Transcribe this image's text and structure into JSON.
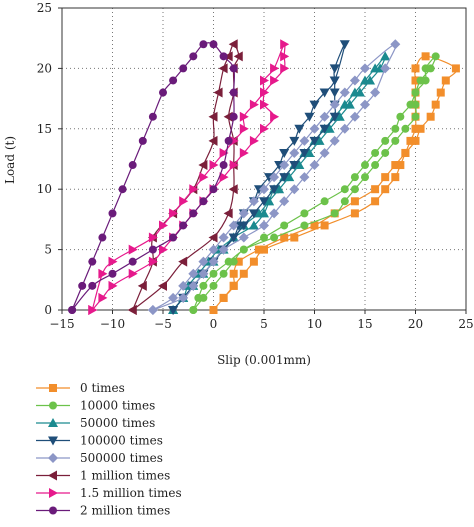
{
  "chart_data": {
    "type": "line",
    "xlabel": "Slip (0.001mm)",
    "ylabel": "Load (t)",
    "xlim": [
      -15,
      25
    ],
    "ylim": [
      0,
      25
    ],
    "xticks": [
      "−15",
      "−10",
      "−5",
      "0",
      "5",
      "10",
      "15",
      "20",
      "25"
    ],
    "yticks": [
      "0",
      "5",
      "10",
      "15",
      "20",
      "25"
    ],
    "grid": "dotted",
    "legend_position": "bottom-left, below plot",
    "series": [
      {
        "name": "0 times",
        "color": "#f28e2b",
        "marker": "square",
        "points": [
          [
            0,
            0
          ],
          [
            1,
            1
          ],
          [
            2,
            2
          ],
          [
            3,
            3
          ],
          [
            4,
            4
          ],
          [
            5,
            5
          ],
          [
            8,
            6
          ],
          [
            11,
            7
          ],
          [
            14,
            8
          ],
          [
            16,
            9
          ],
          [
            17,
            10
          ],
          [
            18,
            11
          ],
          [
            18.5,
            12
          ],
          [
            19,
            13
          ],
          [
            19.5,
            14
          ],
          [
            20,
            15
          ],
          [
            20,
            16
          ],
          [
            20,
            17
          ],
          [
            20,
            18
          ],
          [
            20,
            19
          ],
          [
            20,
            20
          ],
          [
            21,
            21
          ],
          [
            24,
            20
          ],
          [
            23,
            19
          ],
          [
            22.5,
            18
          ],
          [
            22,
            17
          ],
          [
            21.5,
            16
          ],
          [
            20.5,
            15
          ],
          [
            20,
            14
          ],
          [
            19,
            13
          ],
          [
            18,
            12
          ],
          [
            17,
            11
          ],
          [
            16,
            10
          ],
          [
            14,
            9
          ],
          [
            12,
            8
          ],
          [
            10,
            7
          ],
          [
            7,
            6
          ],
          [
            4.5,
            5
          ],
          [
            2.5,
            4
          ],
          [
            2,
            3
          ],
          [
            2,
            2
          ],
          [
            1,
            1
          ],
          [
            0,
            0
          ]
        ]
      },
      {
        "name": "10000 times",
        "color": "#6cc24a",
        "marker": "circle",
        "points": [
          [
            -2,
            0
          ],
          [
            -1,
            1
          ],
          [
            0,
            2
          ],
          [
            1,
            3
          ],
          [
            2,
            4
          ],
          [
            3,
            5
          ],
          [
            6,
            6
          ],
          [
            9,
            7
          ],
          [
            12,
            8
          ],
          [
            13,
            9
          ],
          [
            14,
            10
          ],
          [
            15,
            11
          ],
          [
            16,
            12
          ],
          [
            17,
            13
          ],
          [
            18,
            14
          ],
          [
            19,
            15
          ],
          [
            20,
            16
          ],
          [
            20,
            17
          ],
          [
            20,
            18
          ],
          [
            21,
            19
          ],
          [
            21,
            20
          ],
          [
            22,
            21
          ],
          [
            21.5,
            20
          ],
          [
            20.5,
            19
          ],
          [
            20,
            18
          ],
          [
            19.5,
            17
          ],
          [
            18.5,
            16
          ],
          [
            18,
            15
          ],
          [
            17,
            14
          ],
          [
            16,
            13
          ],
          [
            15,
            12
          ],
          [
            14,
            11
          ],
          [
            13,
            10
          ],
          [
            11,
            9
          ],
          [
            9,
            8
          ],
          [
            7,
            7
          ],
          [
            5,
            6
          ],
          [
            3,
            5
          ],
          [
            1.5,
            4
          ],
          [
            0,
            3
          ],
          [
            -1,
            2
          ],
          [
            -1.5,
            1
          ],
          [
            -2,
            0
          ]
        ]
      },
      {
        "name": "50000 times",
        "color": "#1b8a8f",
        "marker": "triangle-up",
        "points": [
          [
            -4,
            0
          ],
          [
            -3,
            1
          ],
          [
            -2,
            2
          ],
          [
            -1,
            3
          ],
          [
            0,
            4
          ],
          [
            1,
            5
          ],
          [
            2,
            6
          ],
          [
            4,
            7
          ],
          [
            5,
            8
          ],
          [
            5.5,
            9
          ],
          [
            6,
            10
          ],
          [
            7,
            11
          ],
          [
            8,
            12
          ],
          [
            9,
            13
          ],
          [
            10,
            14
          ],
          [
            11,
            15
          ],
          [
            12,
            16
          ],
          [
            13,
            17
          ],
          [
            14,
            18
          ],
          [
            15,
            19
          ],
          [
            16,
            20
          ],
          [
            17,
            21
          ],
          [
            16.5,
            20
          ],
          [
            15.5,
            19
          ],
          [
            14.5,
            18
          ],
          [
            13.5,
            17
          ],
          [
            12.5,
            16
          ],
          [
            11.5,
            15
          ],
          [
            10.5,
            14
          ],
          [
            9.5,
            13
          ],
          [
            8.5,
            12
          ],
          [
            7.5,
            11
          ],
          [
            6.5,
            10
          ],
          [
            5.5,
            9
          ],
          [
            4.5,
            8
          ],
          [
            3,
            7
          ],
          [
            2,
            6
          ],
          [
            0.5,
            5
          ],
          [
            -0.5,
            4
          ],
          [
            -1.5,
            3
          ],
          [
            -2.5,
            2
          ],
          [
            -3,
            1
          ],
          [
            -4,
            0
          ]
        ]
      },
      {
        "name": "100000 times",
        "color": "#1f4e79",
        "marker": "triangle-down",
        "points": [
          [
            -4,
            0
          ],
          [
            -3,
            1
          ],
          [
            -2,
            2
          ],
          [
            -1,
            3
          ],
          [
            0,
            4
          ],
          [
            1,
            5
          ],
          [
            2,
            6
          ],
          [
            3,
            7
          ],
          [
            4,
            8
          ],
          [
            5,
            9
          ],
          [
            6,
            10
          ],
          [
            7,
            11
          ],
          [
            8,
            12
          ],
          [
            9,
            13
          ],
          [
            10,
            14
          ],
          [
            11,
            15
          ],
          [
            12,
            16
          ],
          [
            12,
            17
          ],
          [
            12,
            18
          ],
          [
            12,
            19
          ],
          [
            12,
            20
          ],
          [
            13,
            22
          ],
          [
            12,
            19
          ],
          [
            11,
            18
          ],
          [
            10,
            17
          ],
          [
            9.5,
            16
          ],
          [
            8.5,
            15
          ],
          [
            8,
            14
          ],
          [
            7,
            13
          ],
          [
            6.5,
            12
          ],
          [
            5.5,
            11
          ],
          [
            4.5,
            10
          ],
          [
            4,
            9
          ],
          [
            3,
            8
          ],
          [
            2.5,
            7
          ],
          [
            2,
            6
          ],
          [
            1,
            5
          ],
          [
            0,
            4
          ],
          [
            -1,
            3
          ],
          [
            -2,
            2
          ],
          [
            -3,
            1
          ],
          [
            -4,
            0
          ]
        ]
      },
      {
        "name": "500000 times",
        "color": "#8c96c6",
        "marker": "diamond",
        "points": [
          [
            -6,
            0
          ],
          [
            -4,
            1
          ],
          [
            -3,
            2
          ],
          [
            -2,
            3
          ],
          [
            -1,
            4
          ],
          [
            0,
            5
          ],
          [
            1,
            6
          ],
          [
            2,
            7
          ],
          [
            3,
            8
          ],
          [
            4,
            9
          ],
          [
            5,
            10
          ],
          [
            6,
            11
          ],
          [
            7,
            12
          ],
          [
            8,
            13
          ],
          [
            9,
            14
          ],
          [
            10,
            15
          ],
          [
            11,
            16
          ],
          [
            12,
            17
          ],
          [
            13,
            18
          ],
          [
            14,
            19
          ],
          [
            15,
            20
          ],
          [
            18,
            22
          ],
          [
            17,
            20
          ],
          [
            16,
            18
          ],
          [
            15,
            17
          ],
          [
            14,
            16
          ],
          [
            13,
            15
          ],
          [
            12,
            14
          ],
          [
            11,
            13
          ],
          [
            10,
            12
          ],
          [
            9,
            11
          ],
          [
            8,
            10
          ],
          [
            7,
            9
          ],
          [
            6,
            8
          ],
          [
            5,
            7
          ],
          [
            3,
            6
          ],
          [
            1,
            5
          ],
          [
            0,
            4
          ],
          [
            -1,
            3
          ],
          [
            -2,
            2
          ],
          [
            -3,
            1
          ],
          [
            -6,
            0
          ]
        ]
      },
      {
        "name": "1 million times",
        "color": "#7b1f3a",
        "marker": "triangle-left",
        "points": [
          [
            -8,
            0
          ],
          [
            -7,
            2
          ],
          [
            -6,
            4
          ],
          [
            -6,
            6
          ],
          [
            -4,
            8
          ],
          [
            -2,
            10
          ],
          [
            -1,
            12
          ],
          [
            0,
            14
          ],
          [
            0,
            16
          ],
          [
            0.5,
            18
          ],
          [
            1,
            20
          ],
          [
            1.5,
            21
          ],
          [
            2,
            22
          ],
          [
            2.5,
            21
          ],
          [
            2,
            20
          ],
          [
            2,
            18
          ],
          [
            1.5,
            16
          ],
          [
            2,
            14
          ],
          [
            2,
            12
          ],
          [
            2,
            10
          ],
          [
            1.5,
            8
          ],
          [
            0,
            6
          ],
          [
            -3,
            4
          ],
          [
            -5,
            2
          ],
          [
            -8,
            0
          ]
        ]
      },
      {
        "name": "1.5 million times",
        "color": "#e6198c",
        "marker": "triangle-right",
        "points": [
          [
            -12,
            0
          ],
          [
            -11,
            1
          ],
          [
            -10,
            2
          ],
          [
            -8,
            3
          ],
          [
            -6,
            4
          ],
          [
            -5,
            5
          ],
          [
            -4,
            6
          ],
          [
            -3,
            7
          ],
          [
            -2,
            8
          ],
          [
            -1,
            9
          ],
          [
            0,
            10
          ],
          [
            1,
            11
          ],
          [
            2,
            12
          ],
          [
            3,
            13
          ],
          [
            4,
            14
          ],
          [
            5,
            15
          ],
          [
            6,
            16
          ],
          [
            5,
            17
          ],
          [
            5,
            18
          ],
          [
            5,
            19
          ],
          [
            6,
            20
          ],
          [
            7,
            22
          ],
          [
            7,
            21
          ],
          [
            7,
            20
          ],
          [
            6,
            19
          ],
          [
            5,
            18
          ],
          [
            4,
            17
          ],
          [
            3,
            16
          ],
          [
            3,
            15
          ],
          [
            2,
            14
          ],
          [
            1,
            13
          ],
          [
            0,
            12
          ],
          [
            -1,
            11
          ],
          [
            -2,
            10
          ],
          [
            -3,
            9
          ],
          [
            -4,
            8
          ],
          [
            -5,
            7
          ],
          [
            -6,
            6
          ],
          [
            -8,
            5
          ],
          [
            -10,
            4
          ],
          [
            -11,
            3
          ],
          [
            -12,
            0
          ]
        ]
      },
      {
        "name": "2 million times",
        "color": "#6a1b7a",
        "marker": "circle",
        "points": [
          [
            -14,
            0
          ],
          [
            -13,
            2
          ],
          [
            -12,
            4
          ],
          [
            -11,
            6
          ],
          [
            -10,
            8
          ],
          [
            -9,
            10
          ],
          [
            -8,
            12
          ],
          [
            -7,
            14
          ],
          [
            -6,
            16
          ],
          [
            -5,
            18
          ],
          [
            -4,
            19
          ],
          [
            -3,
            20
          ],
          [
            -2,
            21
          ],
          [
            -1,
            22
          ],
          [
            0,
            22
          ],
          [
            1,
            21
          ],
          [
            2,
            20
          ],
          [
            2,
            18
          ],
          [
            2,
            16
          ],
          [
            1.5,
            14
          ],
          [
            1,
            12
          ],
          [
            0,
            10
          ],
          [
            -1,
            9
          ],
          [
            -2,
            8
          ],
          [
            -3,
            7
          ],
          [
            -4,
            6
          ],
          [
            -6,
            5
          ],
          [
            -8,
            4
          ],
          [
            -10,
            3
          ],
          [
            -12,
            2
          ],
          [
            -14,
            0
          ]
        ]
      }
    ]
  }
}
